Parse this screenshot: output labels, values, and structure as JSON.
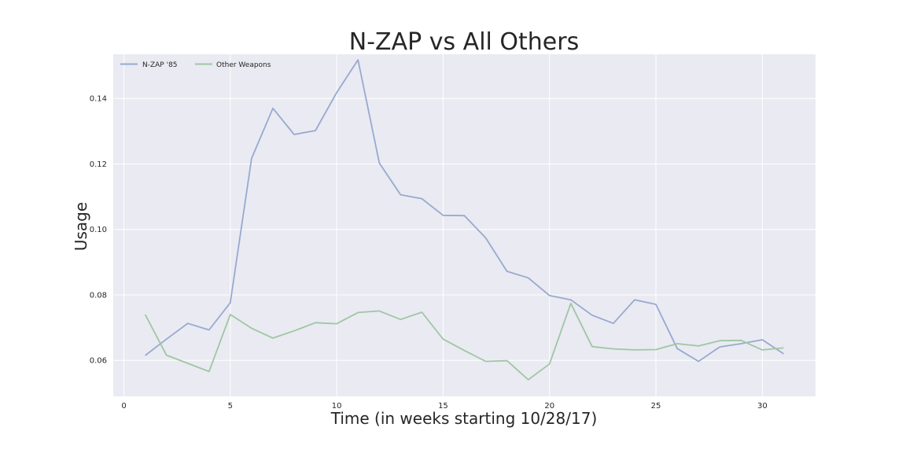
{
  "chart_data": {
    "type": "line",
    "title": "N-ZAP vs All Others",
    "xlabel": "Time (in weeks starting 10/28/17)",
    "ylabel": "Usage",
    "xlim": [
      -0.5,
      32.5
    ],
    "ylim": [
      0.049,
      0.1535
    ],
    "xticks": [
      0,
      5,
      10,
      15,
      20,
      25,
      30
    ],
    "yticks": [
      0.06,
      0.08,
      0.1,
      0.12,
      0.14
    ],
    "ytick_labels": [
      "0.06",
      "0.08",
      "0.10",
      "0.12",
      "0.14"
    ],
    "grid": true,
    "legend_position": "top-left",
    "x": [
      1,
      2,
      3,
      4,
      5,
      6,
      7,
      8,
      9,
      10,
      11,
      12,
      13,
      14,
      15,
      16,
      17,
      18,
      19,
      20,
      21,
      22,
      23,
      24,
      25,
      26,
      27,
      28,
      29,
      30,
      31
    ],
    "series": [
      {
        "name": "N-ZAP '85",
        "color": "#98a9d0",
        "values": [
          0.0615,
          0.0665,
          0.0713,
          0.0693,
          0.0776,
          0.1217,
          0.137,
          0.129,
          0.1302,
          0.1418,
          0.1518,
          0.1203,
          0.1106,
          0.1094,
          0.1043,
          0.1042,
          0.0974,
          0.0872,
          0.0852,
          0.0798,
          0.0785,
          0.0738,
          0.0713,
          0.0785,
          0.0771,
          0.0636,
          0.0597,
          0.0641,
          0.0651,
          0.0663,
          0.062
        ]
      },
      {
        "name": "Other Weapons",
        "color": "#9fc6a4",
        "values": [
          0.074,
          0.0616,
          0.0591,
          0.0566,
          0.074,
          0.0698,
          0.0668,
          0.069,
          0.0715,
          0.0712,
          0.0746,
          0.0751,
          0.0725,
          0.0747,
          0.0665,
          0.063,
          0.0597,
          0.0599,
          0.0541,
          0.0589,
          0.0774,
          0.0642,
          0.0635,
          0.0632,
          0.0633,
          0.0651,
          0.0644,
          0.066,
          0.0661,
          0.0632,
          0.0638
        ]
      }
    ]
  }
}
